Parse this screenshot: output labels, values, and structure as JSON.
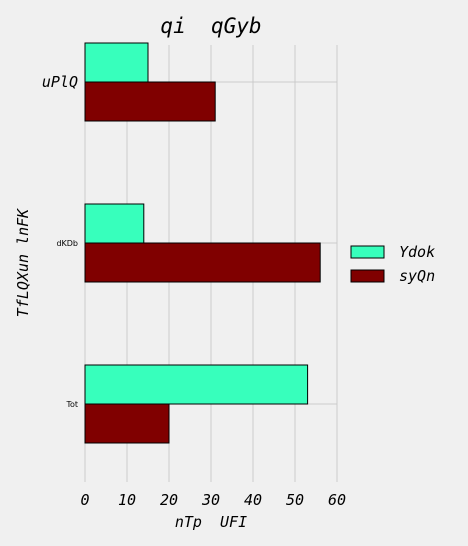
{
  "chart_data": {
    "type": "bar",
    "orientation": "horizontal",
    "title": "qi  qGyb",
    "xlabel": "nTp  UFI",
    "ylabel": "TfLQXun lnFK",
    "categories": [
      "uPlQ",
      "dKDb",
      "Tot"
    ],
    "series": [
      {
        "name": "Ydok",
        "color": "#37ffbc",
        "values": [
          15,
          14,
          53
        ]
      },
      {
        "name": "syQn",
        "color": "#800000",
        "values": [
          31,
          56,
          20
        ]
      }
    ],
    "xlim": [
      0,
      60
    ],
    "xticks": [
      0,
      10,
      20,
      30,
      40,
      50,
      60
    ],
    "grid": true,
    "legend_position": "right"
  }
}
